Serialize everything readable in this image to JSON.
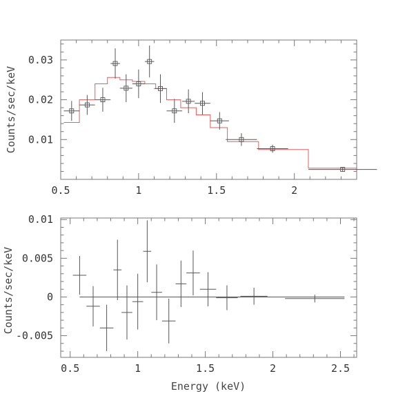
{
  "chart_data": [
    {
      "type": "scatter",
      "ylabel": "Counts/sec/keV",
      "xlabel": "",
      "xlim": [
        0.5,
        2.4
      ],
      "ylim": [
        0.0,
        0.035
      ],
      "x_ticks": [
        0.5,
        1,
        1.5,
        2
      ],
      "x_tick_labels": [
        "0.5",
        "1",
        "1.5",
        "2"
      ],
      "y_ticks": [
        0.01,
        0.02,
        0.03
      ],
      "y_tick_labels": [
        "0.01",
        "0.02",
        "0.03"
      ],
      "colors": {
        "data": "#555555",
        "model": "#e06060"
      },
      "series": [
        {
          "kind": "data-with-errors",
          "points": [
            {
              "x": 0.57,
              "xerr": 0.05,
              "y": 0.0172,
              "yerr": 0.0025
            },
            {
              "x": 0.67,
              "xerr": 0.05,
              "y": 0.0187,
              "yerr": 0.0025
            },
            {
              "x": 0.77,
              "xerr": 0.05,
              "y": 0.02,
              "yerr": 0.003
            },
            {
              "x": 0.85,
              "xerr": 0.03,
              "y": 0.0291,
              "yerr": 0.0038
            },
            {
              "x": 0.92,
              "xerr": 0.04,
              "y": 0.0229,
              "yerr": 0.0035
            },
            {
              "x": 1.0,
              "xerr": 0.04,
              "y": 0.024,
              "yerr": 0.0036
            },
            {
              "x": 1.07,
              "xerr": 0.03,
              "y": 0.0296,
              "yerr": 0.004
            },
            {
              "x": 1.14,
              "xerr": 0.04,
              "y": 0.0228,
              "yerr": 0.0036
            },
            {
              "x": 1.23,
              "xerr": 0.05,
              "y": 0.0172,
              "yerr": 0.003
            },
            {
              "x": 1.32,
              "xerr": 0.04,
              "y": 0.0196,
              "yerr": 0.003
            },
            {
              "x": 1.41,
              "xerr": 0.05,
              "y": 0.0191,
              "yerr": 0.0028
            },
            {
              "x": 1.52,
              "xerr": 0.06,
              "y": 0.0147,
              "yerr": 0.0022
            },
            {
              "x": 1.66,
              "xerr": 0.1,
              "y": 0.01,
              "yerr": 0.0016
            },
            {
              "x": 1.86,
              "xerr": 0.1,
              "y": 0.0077,
              "yerr": 0.001
            },
            {
              "x": 2.31,
              "xerr": 0.22,
              "y": 0.0025,
              "yerr": 0.0005
            }
          ]
        },
        {
          "kind": "model-step",
          "edges": [
            0.52,
            0.62,
            0.72,
            0.8,
            0.88,
            0.96,
            1.04,
            1.11,
            1.18,
            1.27,
            1.37,
            1.46,
            1.57,
            1.77,
            1.96,
            2.09,
            2.4
          ],
          "values": [
            0.0143,
            0.02,
            0.024,
            0.0256,
            0.025,
            0.0246,
            0.024,
            0.0228,
            0.02,
            0.018,
            0.0162,
            0.013,
            0.0095,
            0.0075,
            0.0075,
            0.0028
          ]
        }
      ]
    },
    {
      "type": "scatter",
      "ylabel": "Counts/sec/keV",
      "xlabel": "Energy (keV)",
      "xlim": [
        0.43,
        2.62
      ],
      "ylim": [
        -0.0078,
        0.0102
      ],
      "x_ticks": [
        0.5,
        1,
        1.5,
        2,
        2.5
      ],
      "x_tick_labels": [
        "0.5",
        "1",
        "1.5",
        "2",
        "2.5"
      ],
      "y_ticks": [
        -0.005,
        0,
        0.005,
        0.01
      ],
      "y_tick_labels": [
        "-0.005",
        "0",
        "0.005",
        "0.01"
      ],
      "colors": {
        "data": "#555555",
        "zero_line": "#555555"
      },
      "zero_line": {
        "x_start": 0.57,
        "x_end": 2.53
      },
      "series": [
        {
          "kind": "residuals-with-errors",
          "points": [
            {
              "x": 0.57,
              "xerr": 0.05,
              "y": 0.0028,
              "yerr": 0.0025
            },
            {
              "x": 0.67,
              "xerr": 0.05,
              "y": -0.0012,
              "yerr": 0.0026
            },
            {
              "x": 0.77,
              "xerr": 0.05,
              "y": -0.004,
              "yerr": 0.003
            },
            {
              "x": 0.85,
              "xerr": 0.03,
              "y": 0.0035,
              "yerr": 0.0039
            },
            {
              "x": 0.92,
              "xerr": 0.04,
              "y": -0.002,
              "yerr": 0.0035
            },
            {
              "x": 1.0,
              "xerr": 0.04,
              "y": -0.0006,
              "yerr": 0.0036
            },
            {
              "x": 1.07,
              "xerr": 0.03,
              "y": 0.0059,
              "yerr": 0.004
            },
            {
              "x": 1.14,
              "xerr": 0.04,
              "y": 0.0006,
              "yerr": 0.0036
            },
            {
              "x": 1.23,
              "xerr": 0.05,
              "y": -0.0031,
              "yerr": 0.0029
            },
            {
              "x": 1.32,
              "xerr": 0.04,
              "y": 0.0017,
              "yerr": 0.003
            },
            {
              "x": 1.41,
              "xerr": 0.05,
              "y": 0.0031,
              "yerr": 0.0029
            },
            {
              "x": 1.52,
              "xerr": 0.06,
              "y": 0.001,
              "yerr": 0.0022
            },
            {
              "x": 1.66,
              "xerr": 0.08,
              "y": -0.0001,
              "yerr": 0.0016
            },
            {
              "x": 1.86,
              "xerr": 0.1,
              "y": 0.0001,
              "yerr": 0.0011
            },
            {
              "x": 2.31,
              "xerr": 0.22,
              "y": -0.0002,
              "yerr": 0.0005
            }
          ]
        }
      ]
    }
  ]
}
